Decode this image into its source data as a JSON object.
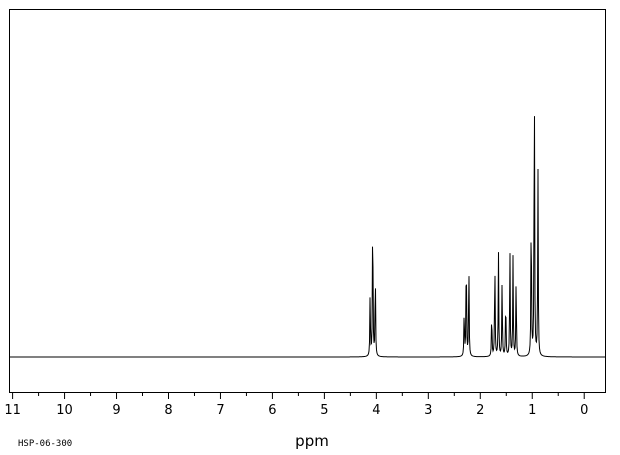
{
  "chart_data": {
    "type": "line",
    "title": "",
    "xlabel": "ppm",
    "ylabel": "",
    "xlim": [
      11.05,
      -0.4
    ],
    "ylim": [
      0,
      100
    ],
    "x_reversed": true,
    "grid": false,
    "x_ticks": [
      11,
      10,
      9,
      8,
      7,
      6,
      5,
      4,
      3,
      2,
      1,
      0
    ],
    "x_tick_labels": [
      "11",
      "10",
      "9",
      "8",
      "7",
      "6",
      "5",
      "4",
      "3",
      "2",
      "1",
      "0"
    ],
    "series": [
      {
        "peaks": [
          {
            "ppm": 4.12,
            "intensity": 20.0
          },
          {
            "ppm": 4.07,
            "intensity": 49.0
          },
          {
            "ppm": 4.02,
            "intensity": 27.5
          },
          {
            "ppm": 2.31,
            "intensity": 14.7
          },
          {
            "ppm": 2.27,
            "intensity": 34.7
          },
          {
            "ppm": 2.22,
            "intensity": 29.7
          },
          {
            "ppm": 1.78,
            "intensity": 14.1
          },
          {
            "ppm": 1.72,
            "intensity": 31.2
          },
          {
            "ppm": 1.65,
            "intensity": 31.8
          },
          {
            "ppm": 1.58,
            "intensity": 24.1
          },
          {
            "ppm": 1.51,
            "intensity": 19.1
          },
          {
            "ppm": 1.43,
            "intensity": 34.1
          },
          {
            "ppm": 1.37,
            "intensity": 30.6
          },
          {
            "ppm": 1.31,
            "intensity": 25.3
          },
          {
            "ppm": 1.02,
            "intensity": 49.4
          },
          {
            "ppm": 0.96,
            "intensity": 95.0
          },
          {
            "ppm": 0.89,
            "intensity": 57.4
          }
        ]
      }
    ]
  },
  "footer": {
    "code": "HSP-06-300"
  }
}
